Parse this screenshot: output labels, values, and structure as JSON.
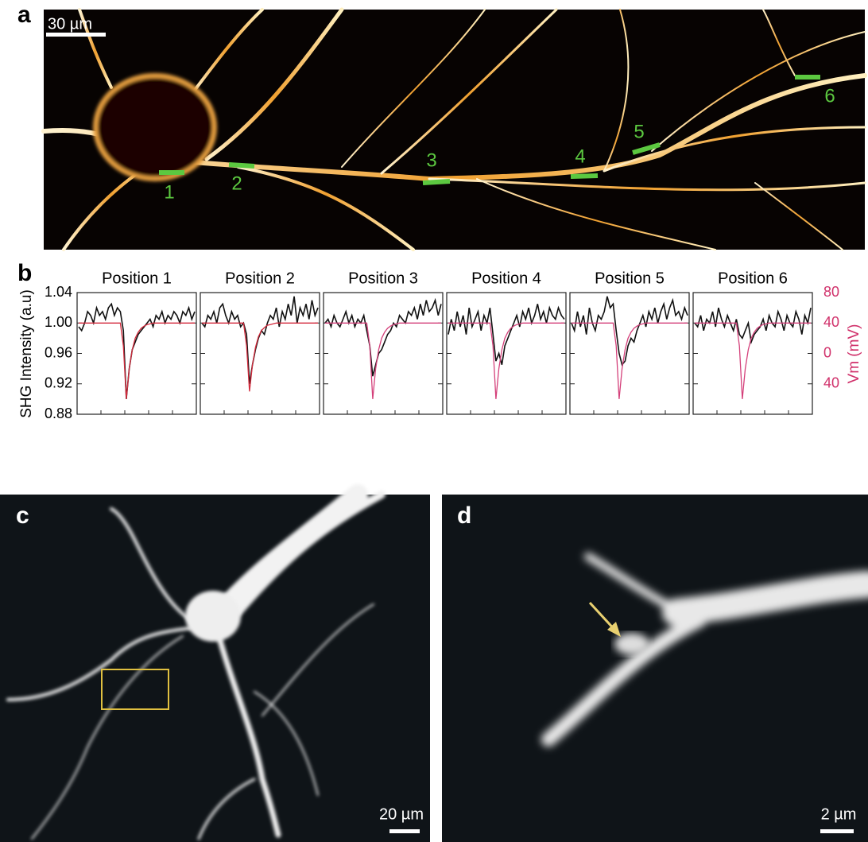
{
  "panel_a": {
    "label": "a",
    "scale_bar": "30 µm",
    "markers": [
      "1",
      "2",
      "3",
      "4",
      "5",
      "6"
    ]
  },
  "chart_data": {
    "type": "line",
    "panel_label": "b",
    "ylabel": "SHG Intensity (a.u)",
    "y2label": "Vm (mV)",
    "ylim": [
      0.88,
      1.04
    ],
    "yticks": [
      0.88,
      0.92,
      0.96,
      {
        "value": 1.0,
        "label": "1.00"
      },
      1.04
    ],
    "y2lim": [
      -80,
      80
    ],
    "y2ticks": [
      80,
      40,
      0,
      {
        "value": -40,
        "label": "40"
      }
    ],
    "panels": [
      {
        "title": "Position 1",
        "series": [
          {
            "color": "#111111",
            "values": [
              0.995,
              0.99,
              1.0,
              1.015,
              1.01,
              1.0,
              1.02,
              1.01,
              1.015,
              1.005,
              1.02,
              1.025,
              1.01,
              1.02,
              1.015,
              0.99,
              0.9,
              0.94,
              0.965,
              0.975,
              0.985,
              0.99,
              0.995,
              1.0,
              1.005,
              0.995,
              1.01,
              1.005,
              1.015,
              1.0,
              1.01,
              1.005,
              1.015,
              1.01,
              1.0,
              1.015,
              1.01,
              1.02,
              1.005,
              1.015
            ]
          },
          {
            "color": "#d42a3c",
            "axis": "y2",
            "values": [
              40,
              40,
              40,
              40,
              40,
              40,
              40,
              40,
              40,
              40,
              40,
              40,
              40,
              40,
              40,
              10,
              -60,
              -20,
              5,
              20,
              28,
              33,
              36,
              38,
              39,
              40,
              40,
              40,
              40,
              40,
              40,
              40,
              40,
              40,
              40,
              40,
              40,
              40,
              40,
              40
            ]
          }
        ]
      },
      {
        "title": "Position 2",
        "series": [
          {
            "color": "#111111",
            "values": [
              1.0,
              0.995,
              1.01,
              1.005,
              1.015,
              1.0,
              1.02,
              1.025,
              1.01,
              1.0,
              1.015,
              1.005,
              1.01,
              0.995,
              1.0,
              0.985,
              0.92,
              0.945,
              0.965,
              0.98,
              0.99,
              0.985,
              1.0,
              1.01,
              1.005,
              1.02,
              0.995,
              1.015,
              1.005,
              1.025,
              1.01,
              1.035,
              1.0,
              1.02,
              1.01,
              1.025,
              1.005,
              1.03,
              1.01,
              1.02
            ]
          },
          {
            "color": "#d42a3c",
            "axis": "y2",
            "values": [
              40,
              40,
              40,
              40,
              40,
              40,
              40,
              40,
              40,
              40,
              40,
              40,
              40,
              40,
              40,
              10,
              -50,
              -15,
              8,
              22,
              30,
              34,
              37,
              38,
              39,
              40,
              40,
              40,
              40,
              40,
              40,
              40,
              40,
              40,
              40,
              40,
              40,
              40,
              40,
              40
            ]
          }
        ]
      },
      {
        "title": "Position 3",
        "series": [
          {
            "color": "#111111",
            "values": [
              1.0,
              1.005,
              0.995,
              1.01,
              1.0,
              0.995,
              1.005,
              1.015,
              1.0,
              1.01,
              0.995,
              1.005,
              1.0,
              1.01,
              0.99,
              0.97,
              0.93,
              0.945,
              0.96,
              0.965,
              0.975,
              0.985,
              0.99,
              1.0,
              0.995,
              1.01,
              1.005,
              1.0,
              1.015,
              1.01,
              1.02,
              1.005,
              1.025,
              1.01,
              1.03,
              1.015,
              1.02,
              1.03,
              1.01,
              1.025
            ]
          },
          {
            "color": "#d4407a",
            "axis": "y2",
            "values": [
              40,
              40,
              40,
              40,
              40,
              40,
              40,
              40,
              40,
              40,
              40,
              40,
              40,
              40,
              40,
              10,
              -60,
              -20,
              5,
              20,
              28,
              33,
              36,
              38,
              39,
              40,
              40,
              40,
              40,
              40,
              40,
              40,
              40,
              40,
              40,
              40,
              40,
              40,
              40,
              40
            ]
          }
        ]
      },
      {
        "title": "Position 4",
        "series": [
          {
            "color": "#111111",
            "values": [
              0.985,
              1.005,
              0.99,
              1.015,
              0.995,
              1.01,
              0.985,
              1.02,
              0.995,
              1.005,
              1.015,
              0.99,
              1.01,
              1.0,
              1.02,
              0.985,
              0.95,
              0.96,
              0.945,
              0.97,
              0.98,
              0.99,
              1.0,
              1.01,
              0.995,
              1.015,
              1.005,
              1.02,
              1.0,
              1.01,
              1.025,
              1.005,
              1.015,
              1.0,
              1.02,
              1.01,
              1.005,
              1.02,
              1.01,
              1.005
            ]
          },
          {
            "color": "#d4407a",
            "axis": "y2",
            "values": [
              40,
              40,
              40,
              40,
              40,
              40,
              40,
              40,
              40,
              40,
              40,
              40,
              40,
              40,
              40,
              10,
              -60,
              -20,
              5,
              20,
              28,
              33,
              36,
              38,
              39,
              40,
              40,
              40,
              40,
              40,
              40,
              40,
              40,
              40,
              40,
              40,
              40,
              40,
              40,
              40
            ]
          }
        ]
      },
      {
        "title": "Position 5",
        "series": [
          {
            "color": "#111111",
            "values": [
              1.0,
              0.99,
              1.015,
              0.995,
              1.01,
              0.985,
              1.02,
              1.0,
              0.99,
              1.01,
              1.005,
              1.015,
              1.035,
              1.02,
              1.025,
              0.99,
              0.96,
              0.945,
              0.95,
              0.97,
              0.98,
              0.975,
              0.99,
              1.0,
              1.01,
              0.995,
              1.015,
              1.005,
              1.02,
              1.0,
              1.015,
              1.025,
              1.005,
              1.02,
              1.03,
              1.01,
              1.015,
              1.005,
              1.02,
              1.01
            ]
          },
          {
            "color": "#d4407a",
            "axis": "y2",
            "values": [
              40,
              40,
              40,
              40,
              40,
              40,
              40,
              40,
              40,
              40,
              40,
              40,
              40,
              40,
              40,
              10,
              -60,
              -20,
              5,
              20,
              28,
              33,
              36,
              38,
              39,
              40,
              40,
              40,
              40,
              40,
              40,
              40,
              40,
              40,
              40,
              40,
              40,
              40,
              40,
              40
            ]
          }
        ]
      },
      {
        "title": "Position 6",
        "series": [
          {
            "color": "#111111",
            "values": [
              1.0,
              0.995,
              1.01,
              0.99,
              1.005,
              1.0,
              1.015,
              0.995,
              1.02,
              1.005,
              0.995,
              1.01,
              1.0,
              0.99,
              1.005,
              0.985,
              0.98,
              0.99,
              1.0,
              0.975,
              0.985,
              0.99,
              0.995,
              1.005,
              0.99,
              1.01,
              1.0,
              0.995,
              1.015,
              1.005,
              0.99,
              1.01,
              1.0,
              0.995,
              1.015,
              1.005,
              0.985,
              1.01,
              1.0,
              1.02
            ]
          },
          {
            "color": "#d4407a",
            "axis": "y2",
            "values": [
              40,
              40,
              40,
              40,
              40,
              40,
              40,
              40,
              40,
              40,
              40,
              40,
              40,
              40,
              40,
              10,
              -60,
              -20,
              5,
              20,
              28,
              33,
              36,
              38,
              39,
              40,
              40,
              40,
              40,
              40,
              40,
              40,
              40,
              40,
              40,
              40,
              40,
              40,
              40,
              40
            ]
          }
        ]
      }
    ]
  },
  "panel_c": {
    "label": "c",
    "scale_bar": "20 µm"
  },
  "panel_d": {
    "label": "d",
    "scale_bar": "2 µm"
  }
}
